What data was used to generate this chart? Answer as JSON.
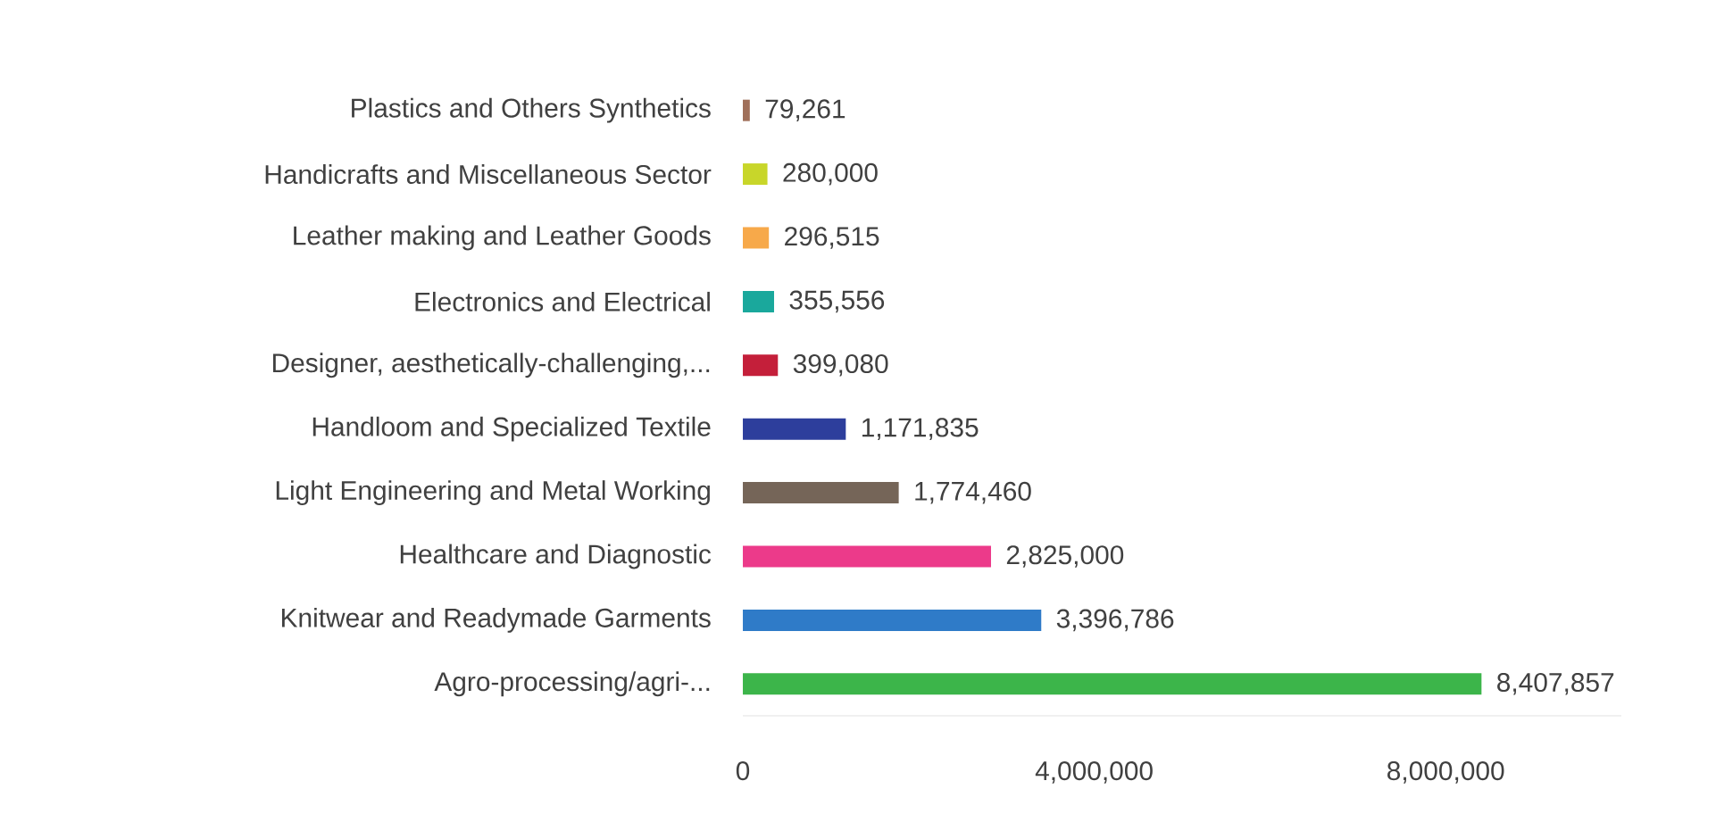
{
  "chart_data": {
    "type": "bar",
    "orientation": "horizontal",
    "categories": [
      "Plastics and Others Synthetics",
      "Handicrafts and Miscellaneous Sector",
      "Leather making and Leather Goods",
      "Electronics and Electrical",
      "Designer, aesthetically-challenging,...",
      "Handloom and Specialized Textile",
      "Light Engineering and Metal Working",
      "Healthcare and Diagnostic",
      "Knitwear and Readymade Garments",
      "Agro-processing/agri-..."
    ],
    "values": [
      79261,
      280000,
      296515,
      355556,
      399080,
      1171835,
      1774460,
      2825000,
      3396786,
      8407857
    ],
    "value_labels": [
      "79,261",
      "280,000",
      "296,515",
      "355,556",
      "399,080",
      "1,171,835",
      "1,774,460",
      "2,825,000",
      "3,396,786",
      "8,407,857"
    ],
    "colors": [
      "#a0705a",
      "#c8d62a",
      "#f7a94a",
      "#1aa89c",
      "#c41f3a",
      "#2d3e9c",
      "#756558",
      "#ec3a8a",
      "#2f7bc8",
      "#3cb54a"
    ],
    "xticks": [
      0,
      {
        "value": 4000000,
        "label": "4,000,000"
      },
      {
        "value": 8000000,
        "label": "8,000,000"
      }
    ],
    "xlim": [
      0,
      10000000
    ],
    "grid": false
  }
}
